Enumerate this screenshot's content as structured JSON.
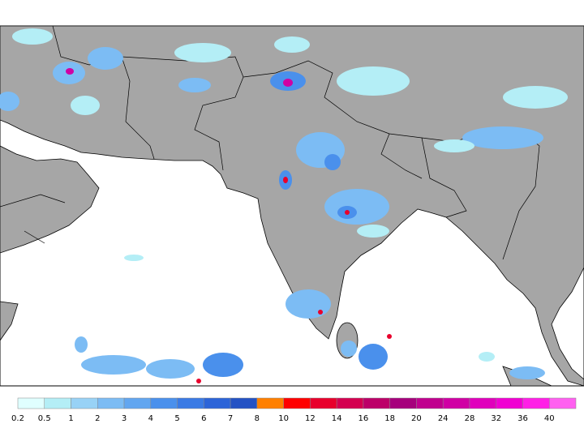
{
  "colorbar": {
    "labels": [
      0.2,
      0.5,
      1,
      2,
      3,
      4,
      5,
      6,
      7,
      8,
      10,
      12,
      14,
      16,
      18,
      20,
      24,
      28,
      32,
      36,
      40
    ],
    "colors": [
      "#e0ffff",
      "#b4eef6",
      "#98d2f6",
      "#7cbcf4",
      "#62a6f0",
      "#4a90ec",
      "#3a7ae4",
      "#2c64d8",
      "#2452c4",
      "#ff8000",
      "#ff0000",
      "#e8002c",
      "#d40050",
      "#bc0068",
      "#a6007c",
      "#c0008e",
      "#d000a4",
      "#e000bc",
      "#f000d2",
      "#ff20e6",
      "#ff60f0"
    ]
  }
}
